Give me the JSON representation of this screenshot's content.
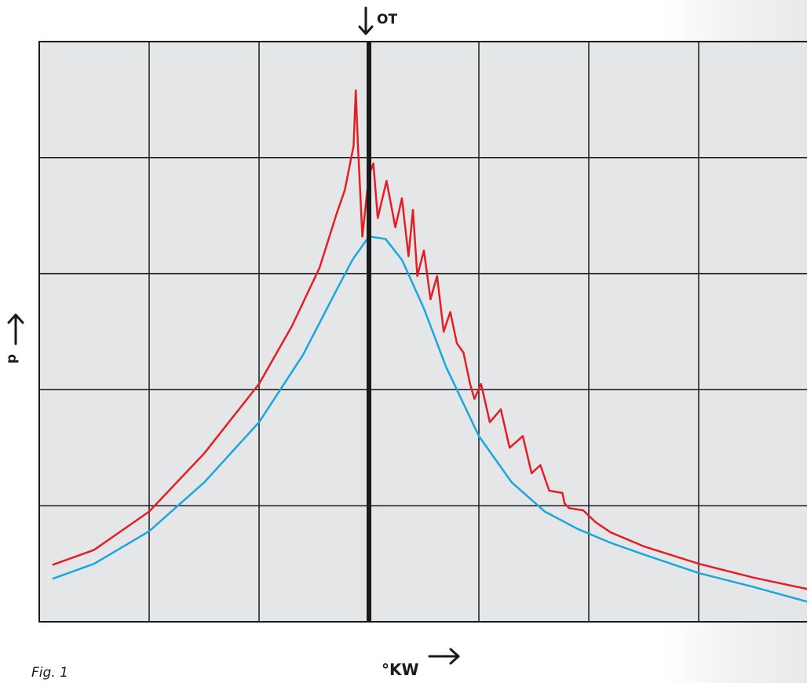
{
  "chart_data": {
    "type": "line",
    "xlabel": "°KW",
    "ylabel": "p",
    "grid": true,
    "grid_divisions": {
      "x": 7,
      "y": 5
    },
    "xlim": [
      0,
      7
    ],
    "ylim": [
      0,
      5
    ],
    "reference_line": {
      "x": 3.0,
      "label": "OT"
    },
    "caption": "Fig. 1",
    "series": [
      {
        "color": "#e31e24",
        "points": [
          [
            0.12,
            0.49
          ],
          [
            0.5,
            0.62
          ],
          [
            1.0,
            0.95
          ],
          [
            1.5,
            1.45
          ],
          [
            2.0,
            2.05
          ],
          [
            2.3,
            2.55
          ],
          [
            2.55,
            3.05
          ],
          [
            2.7,
            3.5
          ],
          [
            2.78,
            3.72
          ],
          [
            2.86,
            4.1
          ],
          [
            2.88,
            4.58
          ],
          [
            2.9,
            4.1
          ],
          [
            2.94,
            3.32
          ],
          [
            3.0,
            3.85
          ],
          [
            3.04,
            3.95
          ],
          [
            3.08,
            3.48
          ],
          [
            3.16,
            3.8
          ],
          [
            3.24,
            3.4
          ],
          [
            3.3,
            3.65
          ],
          [
            3.36,
            3.15
          ],
          [
            3.4,
            3.55
          ],
          [
            3.44,
            2.98
          ],
          [
            3.5,
            3.2
          ],
          [
            3.56,
            2.78
          ],
          [
            3.62,
            2.98
          ],
          [
            3.68,
            2.5
          ],
          [
            3.74,
            2.67
          ],
          [
            3.8,
            2.4
          ],
          [
            3.86,
            2.32
          ],
          [
            3.92,
            2.05
          ],
          [
            3.96,
            1.92
          ],
          [
            4.02,
            2.05
          ],
          [
            4.1,
            1.72
          ],
          [
            4.2,
            1.83
          ],
          [
            4.28,
            1.5
          ],
          [
            4.4,
            1.6
          ],
          [
            4.48,
            1.28
          ],
          [
            4.56,
            1.35
          ],
          [
            4.64,
            1.13
          ],
          [
            4.7,
            1.12
          ],
          [
            4.76,
            1.11
          ],
          [
            4.78,
            1.02
          ],
          [
            4.82,
            0.98
          ],
          [
            4.95,
            0.96
          ],
          [
            5.06,
            0.86
          ],
          [
            5.2,
            0.77
          ],
          [
            5.5,
            0.65
          ],
          [
            6.0,
            0.5
          ],
          [
            6.5,
            0.38
          ],
          [
            7.0,
            0.28
          ]
        ]
      },
      {
        "color": "#1aa6de",
        "points": [
          [
            0.12,
            0.37
          ],
          [
            0.5,
            0.5
          ],
          [
            1.0,
            0.78
          ],
          [
            1.5,
            1.2
          ],
          [
            2.0,
            1.72
          ],
          [
            2.4,
            2.3
          ],
          [
            2.7,
            2.85
          ],
          [
            2.85,
            3.12
          ],
          [
            3.0,
            3.32
          ],
          [
            3.15,
            3.3
          ],
          [
            3.3,
            3.12
          ],
          [
            3.5,
            2.7
          ],
          [
            3.7,
            2.2
          ],
          [
            4.0,
            1.6
          ],
          [
            4.3,
            1.2
          ],
          [
            4.6,
            0.95
          ],
          [
            4.9,
            0.8
          ],
          [
            5.2,
            0.68
          ],
          [
            5.5,
            0.58
          ],
          [
            6.0,
            0.42
          ],
          [
            6.5,
            0.3
          ],
          [
            7.0,
            0.17
          ]
        ]
      }
    ]
  }
}
